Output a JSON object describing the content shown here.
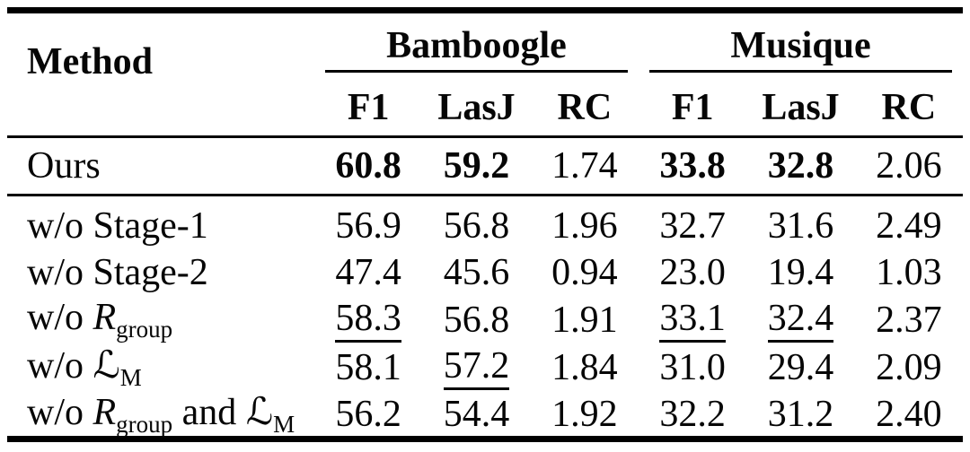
{
  "colors": {
    "background": "#ffffff",
    "text": "#060606",
    "rule": "#000000"
  },
  "table": {
    "header": {
      "method_label": "Method",
      "groups": [
        {
          "label": "Bamboogle",
          "subcolumns": [
            "F1",
            "LasJ",
            "RC"
          ]
        },
        {
          "label": "Musique",
          "subcolumns": [
            "F1",
            "LasJ",
            "RC"
          ]
        }
      ]
    },
    "rows": [
      {
        "name": "ours",
        "label": [
          {
            "text": "Ours",
            "style": "plain"
          }
        ],
        "cells": [
          {
            "v": "60.8",
            "emph": "bold"
          },
          {
            "v": "59.2",
            "emph": "bold"
          },
          {
            "v": "1.74",
            "emph": "plain"
          },
          {
            "v": "33.8",
            "emph": "bold"
          },
          {
            "v": "32.8",
            "emph": "bold"
          },
          {
            "v": "2.06",
            "emph": "plain"
          }
        ]
      },
      {
        "name": "wo-stage-1",
        "label": [
          {
            "text": "w/o Stage-1",
            "style": "plain"
          }
        ],
        "cells": [
          {
            "v": "56.9",
            "emph": "plain"
          },
          {
            "v": "56.8",
            "emph": "plain"
          },
          {
            "v": "1.96",
            "emph": "plain"
          },
          {
            "v": "32.7",
            "emph": "plain"
          },
          {
            "v": "31.6",
            "emph": "plain"
          },
          {
            "v": "2.49",
            "emph": "plain"
          }
        ]
      },
      {
        "name": "wo-stage-2",
        "label": [
          {
            "text": "w/o Stage-2",
            "style": "plain"
          }
        ],
        "cells": [
          {
            "v": "47.4",
            "emph": "plain"
          },
          {
            "v": "45.6",
            "emph": "plain"
          },
          {
            "v": "0.94",
            "emph": "plain"
          },
          {
            "v": "23.0",
            "emph": "plain"
          },
          {
            "v": "19.4",
            "emph": "plain"
          },
          {
            "v": "1.03",
            "emph": "plain"
          }
        ]
      },
      {
        "name": "wo-r-group",
        "label": [
          {
            "text": "w/o ",
            "style": "plain"
          },
          {
            "text": "R",
            "style": "mathit"
          },
          {
            "text": "group",
            "style": "sub"
          }
        ],
        "cells": [
          {
            "v": "58.3",
            "emph": "underline"
          },
          {
            "v": "56.8",
            "emph": "plain"
          },
          {
            "v": "1.91",
            "emph": "plain"
          },
          {
            "v": "33.1",
            "emph": "underline"
          },
          {
            "v": "32.4",
            "emph": "underline"
          },
          {
            "v": "2.37",
            "emph": "plain"
          }
        ]
      },
      {
        "name": "wo-lm",
        "label": [
          {
            "text": "w/o ",
            "style": "plain"
          },
          {
            "text": "ℒ",
            "style": "script"
          },
          {
            "text": "M",
            "style": "sub"
          }
        ],
        "cells": [
          {
            "v": "58.1",
            "emph": "plain"
          },
          {
            "v": "57.2",
            "emph": "underline"
          },
          {
            "v": "1.84",
            "emph": "plain"
          },
          {
            "v": "31.0",
            "emph": "plain"
          },
          {
            "v": "29.4",
            "emph": "plain"
          },
          {
            "v": "2.09",
            "emph": "plain"
          }
        ]
      },
      {
        "name": "wo-r-group-and-lm",
        "label": [
          {
            "text": "w/o ",
            "style": "plain"
          },
          {
            "text": "R",
            "style": "mathit"
          },
          {
            "text": "group",
            "style": "sub"
          },
          {
            "text": " and ",
            "style": "plain"
          },
          {
            "text": "ℒ",
            "style": "script"
          },
          {
            "text": "M",
            "style": "sub"
          }
        ],
        "cells": [
          {
            "v": "56.2",
            "emph": "plain"
          },
          {
            "v": "54.4",
            "emph": "plain"
          },
          {
            "v": "1.92",
            "emph": "plain"
          },
          {
            "v": "32.2",
            "emph": "plain"
          },
          {
            "v": "31.2",
            "emph": "plain"
          },
          {
            "v": "2.40",
            "emph": "plain"
          }
        ]
      }
    ]
  }
}
